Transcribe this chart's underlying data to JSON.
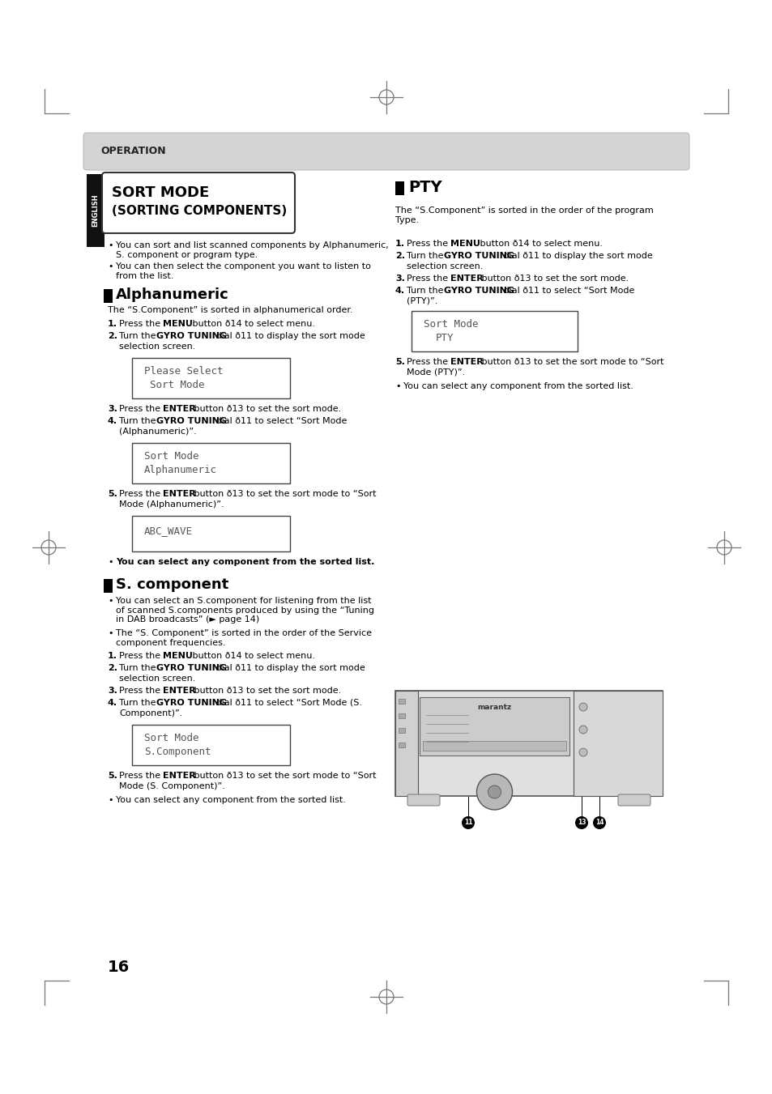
{
  "page_bg": "#ffffff",
  "op_header_bg": "#d4d4d4",
  "op_header_text": "OPERATION",
  "sidebar_bg": "#111111",
  "sidebar_text": "ENGLISH",
  "title_line1": "SORT MODE",
  "title_line2": "(SORTING COMPONENTS)",
  "pty_heading": "PTY",
  "intro_b1": "You can sort and list scanned components by Alphanumeric,\nS. component or program type.",
  "intro_b2": "You can then select the component you want to listen to\nfrom the list.",
  "pty_desc": "The “S.Component” is sorted in the order of the program\nType.",
  "alpha_heading": "Alphanumeric",
  "alpha_desc": "The “S.Component” is sorted in alphanumerical order.",
  "sc_heading": "S. component",
  "sc_b1": "You can select an S.component for listening from the list\nof scanned S.components produced by using the “Tuning\nin DAB broadcasts” (► page 14)",
  "sc_b2": "The “S. Component” is sorted in the order of the Service\ncomponent frequencies.",
  "box1_l1": "Please Select",
  "box1_l2": "  Sort Mode",
  "box2_l1": "Sort Mode",
  "box2_l2": "Alphanumeric",
  "box3_l1": "ABC_WAVE",
  "box4_l1": "Sort Mode",
  "box4_l2": "   PTY",
  "box5_l1": "Sort Mode",
  "box5_l2": "S.Component",
  "sorted_note": "You can select any component from the sorted list.",
  "page_num": "16"
}
